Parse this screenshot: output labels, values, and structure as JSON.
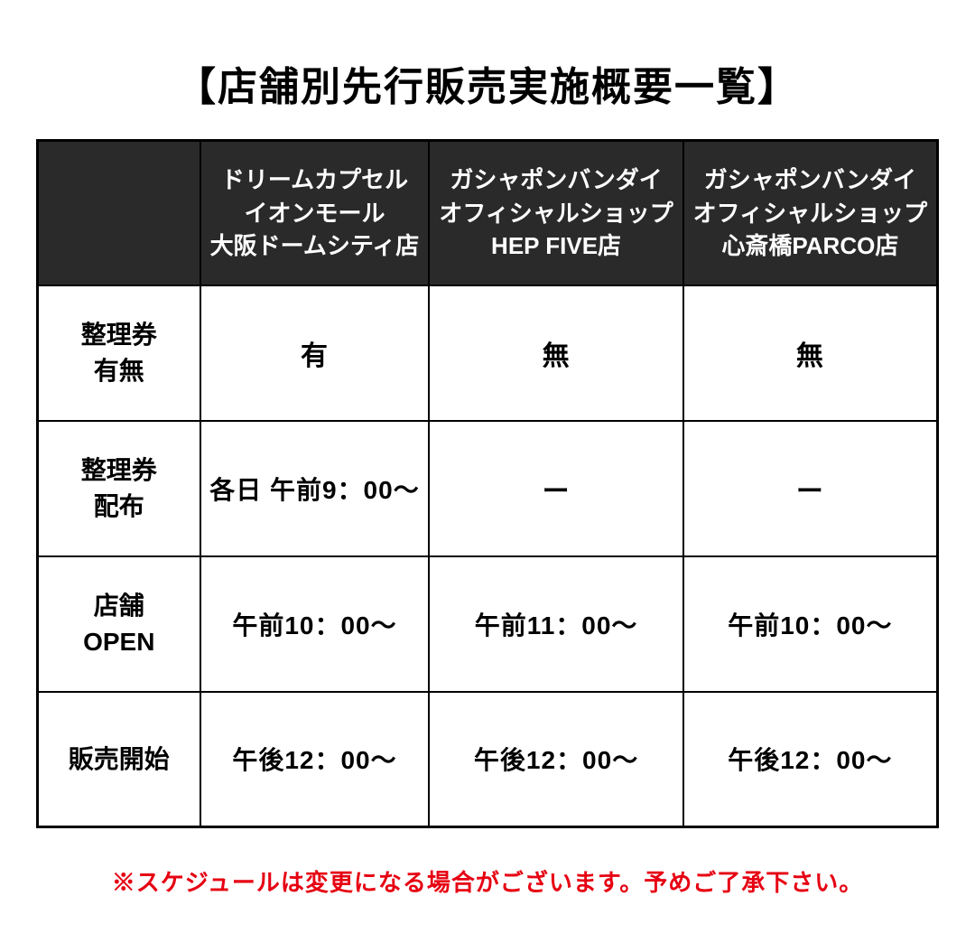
{
  "title": "【店舗別先行販売実施概要一覧】",
  "table": {
    "columns": [
      "ドリームカプセル\nイオンモール\n大阪ドームシティ店",
      "ガシャポンバンダイ\nオフィシャルショップ\nHEP FIVE店",
      "ガシャポンバンダイ\nオフィシャルショップ\n心斎橋PARCO店"
    ],
    "row_labels": [
      "整理券\n有無",
      "整理券\n配布",
      "店舗\nOPEN",
      "販売開始"
    ],
    "rows": [
      [
        "有",
        "無",
        "無"
      ],
      [
        "各日 午前9：00〜",
        "ー",
        "ー"
      ],
      [
        "午前10：00〜",
        "午前11：00〜",
        "午前10：00〜"
      ],
      [
        "午後12：00〜",
        "午後12：00〜",
        "午後12：00〜"
      ]
    ]
  },
  "note": "※スケジュールは変更になる場合がございます。予めご了承下さい。",
  "colors": {
    "header_bg": "#2a2a2a",
    "header_text": "#ffffff",
    "border": "#000000",
    "title_text": "#000000",
    "note_text": "#e60012",
    "background": "#ffffff"
  }
}
